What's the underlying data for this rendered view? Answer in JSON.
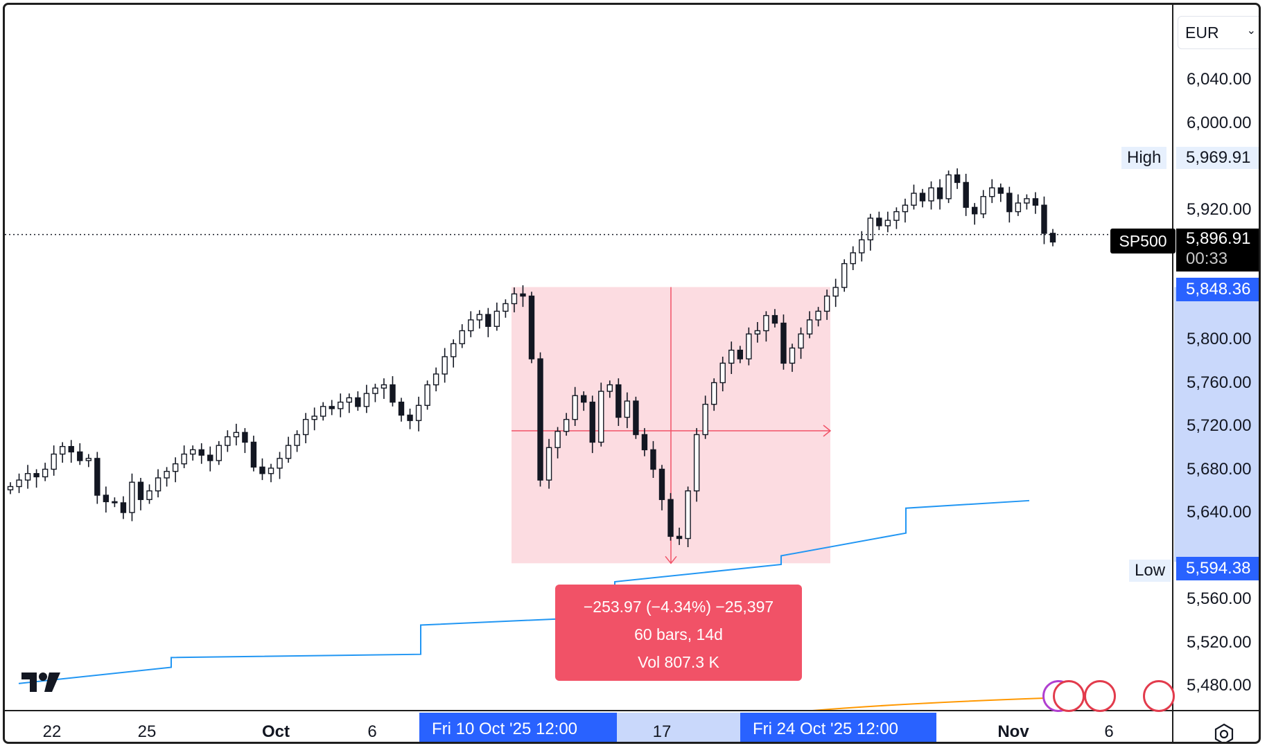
{
  "chart_data": {
    "type": "candlestick",
    "symbol": "SP500",
    "currency": "EUR",
    "y_ticks": [
      "6,040.00",
      "6,000.00",
      "5,920.00",
      "5,800.00",
      "5,760.00",
      "5,720.00",
      "5,680.00",
      "5,640.00",
      "5,560.00",
      "5,520.00",
      "5,480.00"
    ],
    "x_ticks": [
      {
        "label": "22",
        "bold": false
      },
      {
        "label": "25",
        "bold": false
      },
      {
        "label": "Oct",
        "bold": true
      },
      {
        "label": "6",
        "bold": false
      },
      {
        "label": "17",
        "bold": false
      },
      {
        "label": "Nov",
        "bold": true
      },
      {
        "label": "6",
        "bold": false
      }
    ],
    "high": {
      "label": "High",
      "value": "5,969.91"
    },
    "low": {
      "label": "Low",
      "value": "5,594.38"
    },
    "current": {
      "name": "SP500",
      "price": "5,896.91",
      "countdown": "00:33"
    },
    "range_top_price": "5,848.36",
    "range_start_label": "Fri 10 Oct '25   12:00",
    "range_end_label": "Fri 24 Oct '25   12:00",
    "measurement": {
      "change": "−253.97 (−4.34%) −25,397",
      "bars": "60 bars, 14d",
      "volume": "Vol 807.3 K"
    },
    "close_series": [
      5664,
      5670,
      5676,
      5673,
      5680,
      5694,
      5701,
      5696,
      5688,
      5690,
      5656,
      5650,
      5649,
      5640,
      5668,
      5652,
      5660,
      5672,
      5678,
      5685,
      5694,
      5698,
      5693,
      5688,
      5702,
      5710,
      5714,
      5705,
      5682,
      5676,
      5681,
      5690,
      5702,
      5712,
      5726,
      5729,
      5738,
      5736,
      5742,
      5746,
      5738,
      5750,
      5755,
      5758,
      5742,
      5730,
      5725,
      5739,
      5758,
      5768,
      5784,
      5796,
      5808,
      5818,
      5823,
      5812,
      5826,
      5833,
      5842,
      5840,
      5782,
      5670,
      5700,
      5715,
      5726,
      5748,
      5742,
      5705,
      5752,
      5758,
      5728,
      5743,
      5712,
      5698,
      5680,
      5652,
      5618,
      5616,
      5660,
      5712,
      5740,
      5760,
      5778,
      5790,
      5782,
      5805,
      5808,
      5822,
      5815,
      5778,
      5792,
      5805,
      5818,
      5826,
      5840,
      5848,
      5870,
      5880,
      5892,
      5912,
      5905,
      5910,
      5918,
      5924,
      5935,
      5928,
      5940,
      5930,
      5952,
      5945,
      5922,
      5916,
      5932,
      5940,
      5935,
      5918,
      5926,
      5930,
      5924,
      5898,
      5890
    ],
    "ma_line": [
      [
        5482,
        5497
      ],
      [
        5506,
        5509
      ],
      [
        5536,
        5544
      ],
      [
        5576,
        5592
      ],
      [
        5600,
        5621
      ],
      [
        5644,
        5651
      ]
    ]
  }
}
